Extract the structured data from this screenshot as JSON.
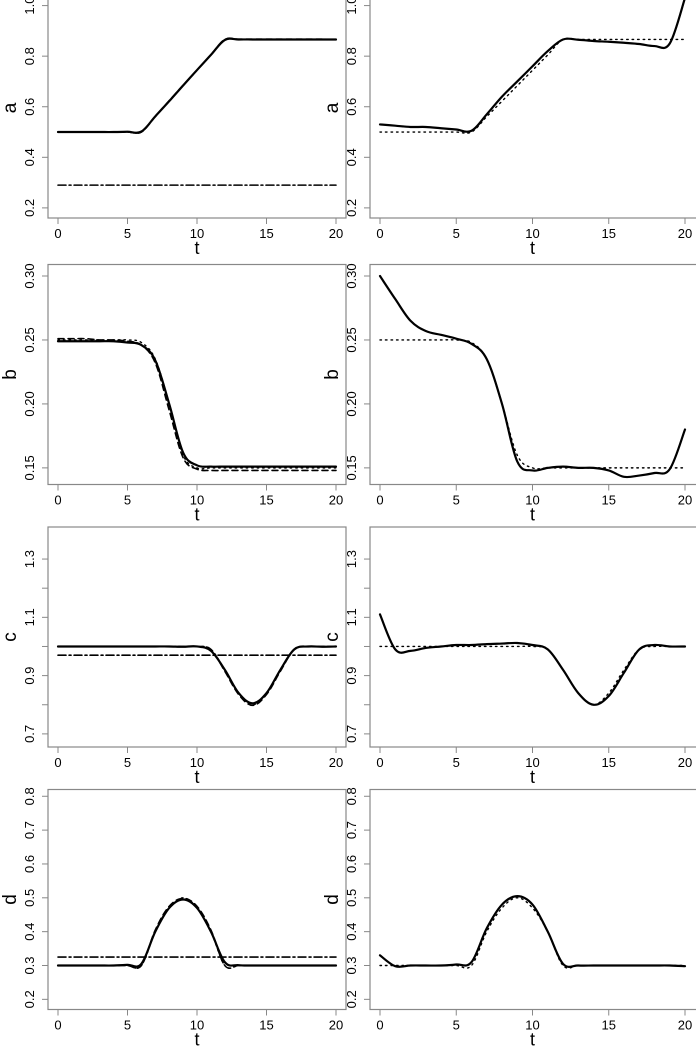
{
  "chart_data": [
    {
      "type": "line",
      "ylabel": "a",
      "xlabel": "t",
      "xlim": [
        0,
        20
      ],
      "xticks": [
        0,
        5,
        10,
        15,
        20
      ],
      "ylim": [
        0.16,
        1.03
      ],
      "yticks": [
        0.2,
        0.4,
        0.6,
        0.8,
        1.0
      ],
      "ytick_labels": [
        "0.2",
        "0.4",
        "0.6",
        "0.8",
        "1.0"
      ],
      "panel": "left",
      "x": [
        0,
        1,
        2,
        3,
        4,
        5,
        6,
        7,
        8,
        9,
        10,
        11,
        12,
        13,
        14,
        15,
        16,
        17,
        18,
        19,
        20
      ],
      "series": [
        {
          "style": "dotted",
          "values": [
            0.5,
            0.5,
            0.5,
            0.5,
            0.5,
            0.5,
            0.5,
            0.561,
            0.622,
            0.683,
            0.744,
            0.805,
            0.866,
            0.866,
            0.866,
            0.866,
            0.866,
            0.866,
            0.866,
            0.866,
            0.866
          ]
        },
        {
          "style": "dashed",
          "values": [
            0.5,
            0.5,
            0.5,
            0.5,
            0.5,
            0.5,
            0.5,
            0.562,
            0.624,
            0.685,
            0.745,
            0.806,
            0.866,
            0.867,
            0.867,
            0.867,
            0.867,
            0.867,
            0.867,
            0.867,
            0.866
          ]
        },
        {
          "style": "solid",
          "values": [
            0.5,
            0.5,
            0.5,
            0.5,
            0.5,
            0.501,
            0.502,
            0.562,
            0.622,
            0.684,
            0.745,
            0.805,
            0.864,
            0.866,
            0.866,
            0.866,
            0.866,
            0.866,
            0.866,
            0.866,
            0.866
          ]
        },
        {
          "style": "dashdot",
          "values": [
            0.29,
            0.29,
            0.29,
            0.29,
            0.29,
            0.29,
            0.29,
            0.29,
            0.29,
            0.29,
            0.29,
            0.29,
            0.29,
            0.29,
            0.29,
            0.29,
            0.29,
            0.29,
            0.29,
            0.29,
            0.29
          ]
        }
      ]
    },
    {
      "type": "line",
      "ylabel": "a",
      "xlabel": "t",
      "xlim": [
        0,
        20
      ],
      "xticks": [
        0,
        5,
        10,
        15,
        20
      ],
      "ylim": [
        0.16,
        1.03
      ],
      "yticks": [
        0.2,
        0.4,
        0.6,
        0.8,
        1.0
      ],
      "ytick_labels": [
        "0.2",
        "0.4",
        "0.6",
        "0.8",
        "1.0"
      ],
      "panel": "right",
      "x": [
        0,
        1,
        2,
        3,
        4,
        5,
        6,
        7,
        8,
        9,
        10,
        11,
        12,
        13,
        14,
        15,
        16,
        17,
        18,
        19,
        20
      ],
      "series": [
        {
          "style": "dotted",
          "values": [
            0.5,
            0.5,
            0.5,
            0.5,
            0.5,
            0.5,
            0.5,
            0.561,
            0.622,
            0.683,
            0.744,
            0.805,
            0.866,
            0.866,
            0.866,
            0.866,
            0.866,
            0.866,
            0.866,
            0.866,
            0.866
          ]
        },
        {
          "style": "solid",
          "values": [
            0.53,
            0.525,
            0.52,
            0.52,
            0.515,
            0.51,
            0.505,
            0.57,
            0.64,
            0.7,
            0.76,
            0.82,
            0.866,
            0.865,
            0.86,
            0.857,
            0.853,
            0.848,
            0.84,
            0.85,
            1.03
          ]
        }
      ]
    },
    {
      "type": "line",
      "ylabel": "b",
      "xlabel": "t",
      "xlim": [
        0,
        20
      ],
      "xticks": [
        0,
        5,
        10,
        15,
        20
      ],
      "ylim": [
        0.137,
        0.309
      ],
      "yticks": [
        0.15,
        0.2,
        0.25,
        0.3
      ],
      "ytick_labels": [
        "0.15",
        "0.20",
        "0.25",
        "0.30"
      ],
      "panel": "left",
      "x": [
        0,
        1,
        2,
        3,
        4,
        5,
        6,
        7,
        8,
        9,
        10,
        11,
        12,
        13,
        14,
        15,
        16,
        17,
        18,
        19,
        20
      ],
      "series": [
        {
          "style": "dotted",
          "values": [
            0.25,
            0.25,
            0.25,
            0.25,
            0.25,
            0.25,
            0.248,
            0.235,
            0.2,
            0.16,
            0.15,
            0.15,
            0.15,
            0.15,
            0.15,
            0.15,
            0.15,
            0.15,
            0.15,
            0.15,
            0.15
          ]
        },
        {
          "style": "dashed",
          "values": [
            0.251,
            0.251,
            0.251,
            0.25,
            0.25,
            0.249,
            0.246,
            0.232,
            0.195,
            0.158,
            0.149,
            0.148,
            0.148,
            0.148,
            0.148,
            0.148,
            0.148,
            0.148,
            0.148,
            0.148,
            0.148
          ]
        },
        {
          "style": "solid",
          "values": [
            0.249,
            0.249,
            0.249,
            0.249,
            0.249,
            0.248,
            0.246,
            0.234,
            0.2,
            0.162,
            0.152,
            0.151,
            0.151,
            0.151,
            0.151,
            0.151,
            0.151,
            0.151,
            0.151,
            0.151,
            0.151
          ]
        },
        {
          "style": "dashdot",
          "values": [
            0.135,
            0.135,
            0.135,
            0.135,
            0.135,
            0.135,
            0.135,
            0.135,
            0.135,
            0.135,
            0.135,
            0.135,
            0.135,
            0.135,
            0.135,
            0.135,
            0.135,
            0.135,
            0.135,
            0.135,
            0.135
          ]
        }
      ]
    },
    {
      "type": "line",
      "ylabel": "b",
      "xlabel": "t",
      "xlim": [
        0,
        20
      ],
      "xticks": [
        0,
        5,
        10,
        15,
        20
      ],
      "ylim": [
        0.137,
        0.309
      ],
      "yticks": [
        0.15,
        0.2,
        0.25,
        0.3
      ],
      "ytick_labels": [
        "0.15",
        "0.20",
        "0.25",
        "0.30"
      ],
      "panel": "right",
      "x": [
        0,
        1,
        2,
        3,
        4,
        5,
        6,
        7,
        8,
        9,
        10,
        11,
        12,
        13,
        14,
        15,
        16,
        17,
        18,
        19,
        20
      ],
      "series": [
        {
          "style": "dotted",
          "values": [
            0.25,
            0.25,
            0.25,
            0.25,
            0.25,
            0.25,
            0.248,
            0.235,
            0.2,
            0.16,
            0.15,
            0.15,
            0.15,
            0.15,
            0.15,
            0.15,
            0.15,
            0.15,
            0.15,
            0.15,
            0.15
          ]
        },
        {
          "style": "solid",
          "values": [
            0.3,
            0.282,
            0.265,
            0.257,
            0.254,
            0.251,
            0.247,
            0.235,
            0.2,
            0.155,
            0.148,
            0.15,
            0.151,
            0.15,
            0.15,
            0.148,
            0.143,
            0.144,
            0.146,
            0.149,
            0.18
          ]
        }
      ]
    },
    {
      "type": "line",
      "ylabel": "c",
      "xlabel": "t",
      "xlim": [
        0,
        20
      ],
      "xticks": [
        0,
        5,
        10,
        15,
        20
      ],
      "ylim": [
        0.655,
        1.41
      ],
      "yticks": [
        0.7,
        0.8,
        0.9,
        1.0,
        1.1,
        1.2,
        1.3
      ],
      "ytick_labels": [
        "0.7",
        "",
        "0.9",
        "",
        "1.1",
        "",
        "1.3"
      ],
      "panel": "left",
      "x": [
        0,
        1,
        2,
        3,
        4,
        5,
        6,
        7,
        8,
        9,
        10,
        11,
        12,
        13,
        14,
        15,
        16,
        17,
        18,
        19,
        20
      ],
      "series": [
        {
          "style": "dotted",
          "values": [
            1,
            1,
            1,
            1,
            1,
            1,
            1,
            1,
            1,
            1,
            1,
            0.99,
            0.92,
            0.84,
            0.8,
            0.84,
            0.92,
            0.99,
            1,
            1,
            1
          ]
        },
        {
          "style": "dashed",
          "values": [
            1,
            1,
            1,
            1,
            1,
            1,
            1,
            1,
            1,
            1,
            1,
            0.99,
            0.915,
            0.835,
            0.798,
            0.835,
            0.915,
            0.99,
            1,
            1,
            1
          ]
        },
        {
          "style": "solid",
          "values": [
            1,
            1,
            1,
            1,
            1,
            1,
            1,
            1,
            1,
            0.999,
            1,
            0.985,
            0.92,
            0.84,
            0.805,
            0.84,
            0.92,
            0.99,
            1,
            0.999,
            1
          ]
        },
        {
          "style": "dashdot",
          "values": [
            0.97,
            0.97,
            0.97,
            0.97,
            0.97,
            0.97,
            0.97,
            0.97,
            0.97,
            0.97,
            0.97,
            0.97,
            0.97,
            0.97,
            0.97,
            0.97,
            0.97,
            0.97,
            0.97,
            0.97,
            0.97
          ]
        }
      ]
    },
    {
      "type": "line",
      "ylabel": "c",
      "xlabel": "t",
      "xlim": [
        0,
        20
      ],
      "xticks": [
        0,
        5,
        10,
        15,
        20
      ],
      "ylim": [
        0.655,
        1.41
      ],
      "yticks": [
        0.7,
        0.8,
        0.9,
        1.0,
        1.1,
        1.2,
        1.3
      ],
      "ytick_labels": [
        "0.7",
        "",
        "0.9",
        "",
        "1.1",
        "",
        "1.3"
      ],
      "panel": "right",
      "x": [
        0,
        1,
        2,
        3,
        4,
        5,
        6,
        7,
        8,
        9,
        10,
        11,
        12,
        13,
        14,
        15,
        16,
        17,
        18,
        19,
        20
      ],
      "series": [
        {
          "style": "dotted",
          "values": [
            1,
            1,
            1,
            1,
            1,
            1,
            1,
            1,
            1,
            1,
            1,
            0.99,
            0.92,
            0.84,
            0.8,
            0.84,
            0.92,
            0.99,
            1,
            1,
            1
          ]
        },
        {
          "style": "solid",
          "values": [
            1.11,
            0.99,
            0.985,
            0.995,
            1.0,
            1.005,
            1.005,
            1.008,
            1.01,
            1.012,
            1.005,
            0.99,
            0.92,
            0.84,
            0.8,
            0.83,
            0.91,
            0.99,
            1.005,
            1.0,
            1.0
          ]
        }
      ]
    },
    {
      "type": "line",
      "ylabel": "d",
      "xlabel": "t",
      "xlim": [
        0,
        20
      ],
      "xticks": [
        0,
        5,
        10,
        15,
        20
      ],
      "ylim": [
        0.17,
        0.82
      ],
      "yticks": [
        0.2,
        0.3,
        0.4,
        0.5,
        0.6,
        0.7,
        0.8
      ],
      "ytick_labels": [
        "0.2",
        "0.3",
        "0.4",
        "0.5",
        "0.6",
        "0.7",
        "0.8"
      ],
      "panel": "left",
      "x": [
        0,
        1,
        2,
        3,
        4,
        5,
        6,
        7,
        8,
        9,
        10,
        11,
        12,
        13,
        14,
        15,
        16,
        17,
        18,
        19,
        20
      ],
      "series": [
        {
          "style": "dotted",
          "values": [
            0.3,
            0.3,
            0.3,
            0.3,
            0.3,
            0.3,
            0.3,
            0.4,
            0.47,
            0.5,
            0.47,
            0.4,
            0.3,
            0.3,
            0.3,
            0.3,
            0.3,
            0.3,
            0.3,
            0.3,
            0.3
          ]
        },
        {
          "style": "dashed",
          "values": [
            0.3,
            0.3,
            0.3,
            0.3,
            0.3,
            0.3,
            0.3,
            0.405,
            0.475,
            0.498,
            0.475,
            0.405,
            0.3,
            0.3,
            0.3,
            0.3,
            0.3,
            0.3,
            0.3,
            0.3,
            0.3
          ]
        },
        {
          "style": "solid",
          "values": [
            0.3,
            0.3,
            0.3,
            0.3,
            0.3,
            0.302,
            0.305,
            0.4,
            0.47,
            0.495,
            0.47,
            0.4,
            0.31,
            0.301,
            0.3,
            0.3,
            0.3,
            0.3,
            0.3,
            0.3,
            0.3
          ]
        },
        {
          "style": "dashdot",
          "values": [
            0.325,
            0.325,
            0.325,
            0.325,
            0.325,
            0.325,
            0.325,
            0.325,
            0.325,
            0.325,
            0.325,
            0.325,
            0.325,
            0.325,
            0.325,
            0.325,
            0.325,
            0.325,
            0.325,
            0.325,
            0.325
          ]
        }
      ]
    },
    {
      "type": "line",
      "ylabel": "d",
      "xlabel": "t",
      "xlim": [
        0,
        20
      ],
      "xticks": [
        0,
        5,
        10,
        15,
        20
      ],
      "ylim": [
        0.17,
        0.82
      ],
      "yticks": [
        0.2,
        0.3,
        0.4,
        0.5,
        0.6,
        0.7,
        0.8
      ],
      "ytick_labels": [
        "0.2",
        "0.3",
        "0.4",
        "0.5",
        "0.6",
        "0.7",
        "0.8"
      ],
      "panel": "right",
      "x": [
        0,
        1,
        2,
        3,
        4,
        5,
        6,
        7,
        8,
        9,
        10,
        11,
        12,
        13,
        14,
        15,
        16,
        17,
        18,
        19,
        20
      ],
      "series": [
        {
          "style": "dotted",
          "values": [
            0.3,
            0.3,
            0.3,
            0.3,
            0.3,
            0.3,
            0.3,
            0.4,
            0.47,
            0.5,
            0.47,
            0.4,
            0.3,
            0.3,
            0.3,
            0.3,
            0.3,
            0.3,
            0.3,
            0.3,
            0.3
          ]
        },
        {
          "style": "solid",
          "values": [
            0.33,
            0.298,
            0.3,
            0.3,
            0.3,
            0.303,
            0.31,
            0.41,
            0.48,
            0.505,
            0.48,
            0.4,
            0.305,
            0.3,
            0.3,
            0.3,
            0.3,
            0.3,
            0.3,
            0.3,
            0.298
          ]
        }
      ]
    }
  ]
}
